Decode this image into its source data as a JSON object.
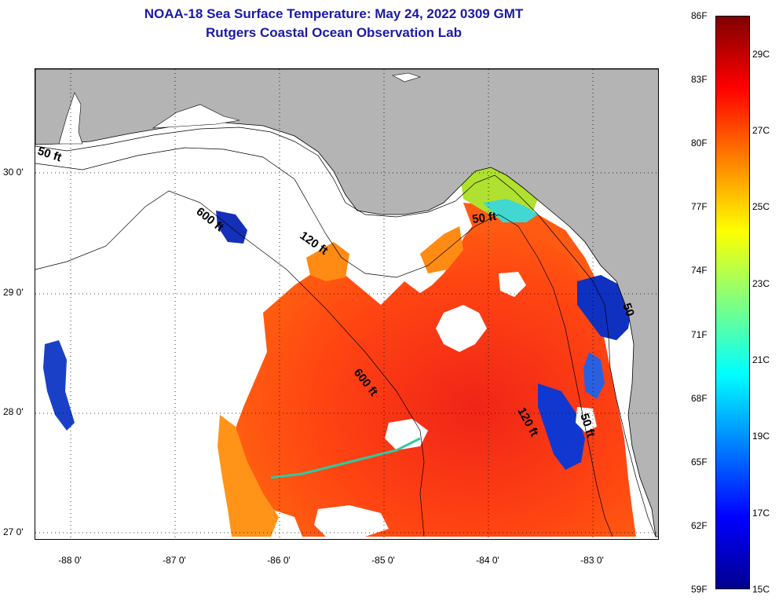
{
  "title": {
    "line1": "NOAA-18 Sea Surface Temperature:  May 24, 2022 0309 GMT",
    "line2": "Rutgers Coastal Ocean Observation Lab"
  },
  "map": {
    "x_axis": {
      "unit": "longitude",
      "ticks": [
        {
          "value": -88,
          "label": "-88 0'"
        },
        {
          "value": -87,
          "label": "-87 0'"
        },
        {
          "value": -86,
          "label": "-86 0'"
        },
        {
          "value": -85,
          "label": "-85 0'"
        },
        {
          "value": -84,
          "label": "-84 0'"
        },
        {
          "value": -83,
          "label": "-83 0'"
        }
      ]
    },
    "y_axis": {
      "unit": "latitude",
      "ticks": [
        {
          "value": 30,
          "label": "30 0'"
        },
        {
          "value": 29,
          "label": "29 0'"
        },
        {
          "value": 28,
          "label": "28 0'"
        },
        {
          "value": 27,
          "label": "27 0'"
        }
      ]
    },
    "contour_labels": [
      {
        "text": "50 ft",
        "id": "contour-label-50ft-west"
      },
      {
        "text": "600 ft",
        "id": "contour-label-600ft-north"
      },
      {
        "text": "120 ft",
        "id": "contour-label-120ft-north"
      },
      {
        "text": "50 ft",
        "id": "contour-label-50ft-bigbend"
      },
      {
        "text": "600 ft",
        "id": "contour-label-600ft-south"
      },
      {
        "text": "120 ft",
        "id": "contour-label-120ft-south"
      },
      {
        "text": "50 ft",
        "id": "contour-label-50ft-south"
      },
      {
        "text": "50",
        "id": "contour-label-50-east"
      }
    ],
    "colors": {
      "land": "#b4b4b4",
      "no_data": "#ffffff",
      "warm": "#ff4a10",
      "hot": "#e82018",
      "mild": "#ff9a10",
      "cool": "#c8e820",
      "cold": "#10c8e0",
      "coldest": "#0828c0"
    }
  },
  "colorbar": {
    "fahrenheit_labels": [
      "86F",
      "83F",
      "80F",
      "77F",
      "74F",
      "71F",
      "68F",
      "65F",
      "62F",
      "59F"
    ],
    "celsius_labels": [
      "29C",
      "27C",
      "25C",
      "23C",
      "21C",
      "19C",
      "17C",
      "15C"
    ],
    "gradient_stops": [
      "#00008f",
      "#0000ff",
      "#0080ff",
      "#00ffff",
      "#80ff80",
      "#ffff00",
      "#ff8000",
      "#ff0000",
      "#800000"
    ]
  }
}
